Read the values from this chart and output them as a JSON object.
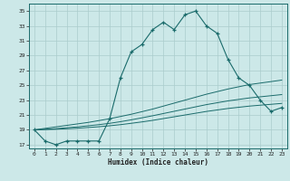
{
  "xlabel": "Humidex (Indice chaleur)",
  "ylabel": "",
  "background_color": "#cce8e8",
  "grid_color": "#aacccc",
  "line_color": "#1a6b6b",
  "xlim": [
    -0.5,
    23.5
  ],
  "ylim": [
    16.5,
    36
  ],
  "xticks": [
    0,
    1,
    2,
    3,
    4,
    5,
    6,
    7,
    8,
    9,
    10,
    11,
    12,
    13,
    14,
    15,
    16,
    17,
    18,
    19,
    20,
    21,
    22,
    23
  ],
  "yticks": [
    17,
    19,
    21,
    23,
    25,
    27,
    29,
    31,
    33,
    35
  ],
  "hours": [
    0,
    1,
    2,
    3,
    4,
    5,
    6,
    7,
    8,
    9,
    10,
    11,
    12,
    13,
    14,
    15,
    16,
    17,
    18,
    19,
    20,
    21,
    22,
    23
  ],
  "humidex": [
    19,
    17.5,
    17,
    17.5,
    17.5,
    17.5,
    17.5,
    20.5,
    26,
    29.5,
    30.5,
    32.5,
    33.5,
    32.5,
    34.5,
    35,
    33,
    32,
    28.5,
    26,
    25,
    23,
    21.5,
    22
  ],
  "trend1": [
    19,
    19.2,
    19.4,
    19.6,
    19.8,
    20.0,
    20.25,
    20.5,
    20.8,
    21.1,
    21.45,
    21.8,
    22.2,
    22.6,
    23.0,
    23.4,
    23.8,
    24.15,
    24.5,
    24.8,
    25.1,
    25.3,
    25.5,
    25.7
  ],
  "trend2": [
    19,
    19.08,
    19.16,
    19.28,
    19.4,
    19.55,
    19.7,
    19.88,
    20.1,
    20.35,
    20.62,
    20.9,
    21.2,
    21.5,
    21.8,
    22.1,
    22.4,
    22.65,
    22.9,
    23.1,
    23.3,
    23.45,
    23.6,
    23.75
  ],
  "trend3": [
    19,
    19.04,
    19.08,
    19.15,
    19.22,
    19.32,
    19.42,
    19.55,
    19.7,
    19.88,
    20.07,
    20.28,
    20.52,
    20.76,
    21.0,
    21.24,
    21.48,
    21.68,
    21.88,
    22.04,
    22.2,
    22.32,
    22.44,
    22.56
  ]
}
